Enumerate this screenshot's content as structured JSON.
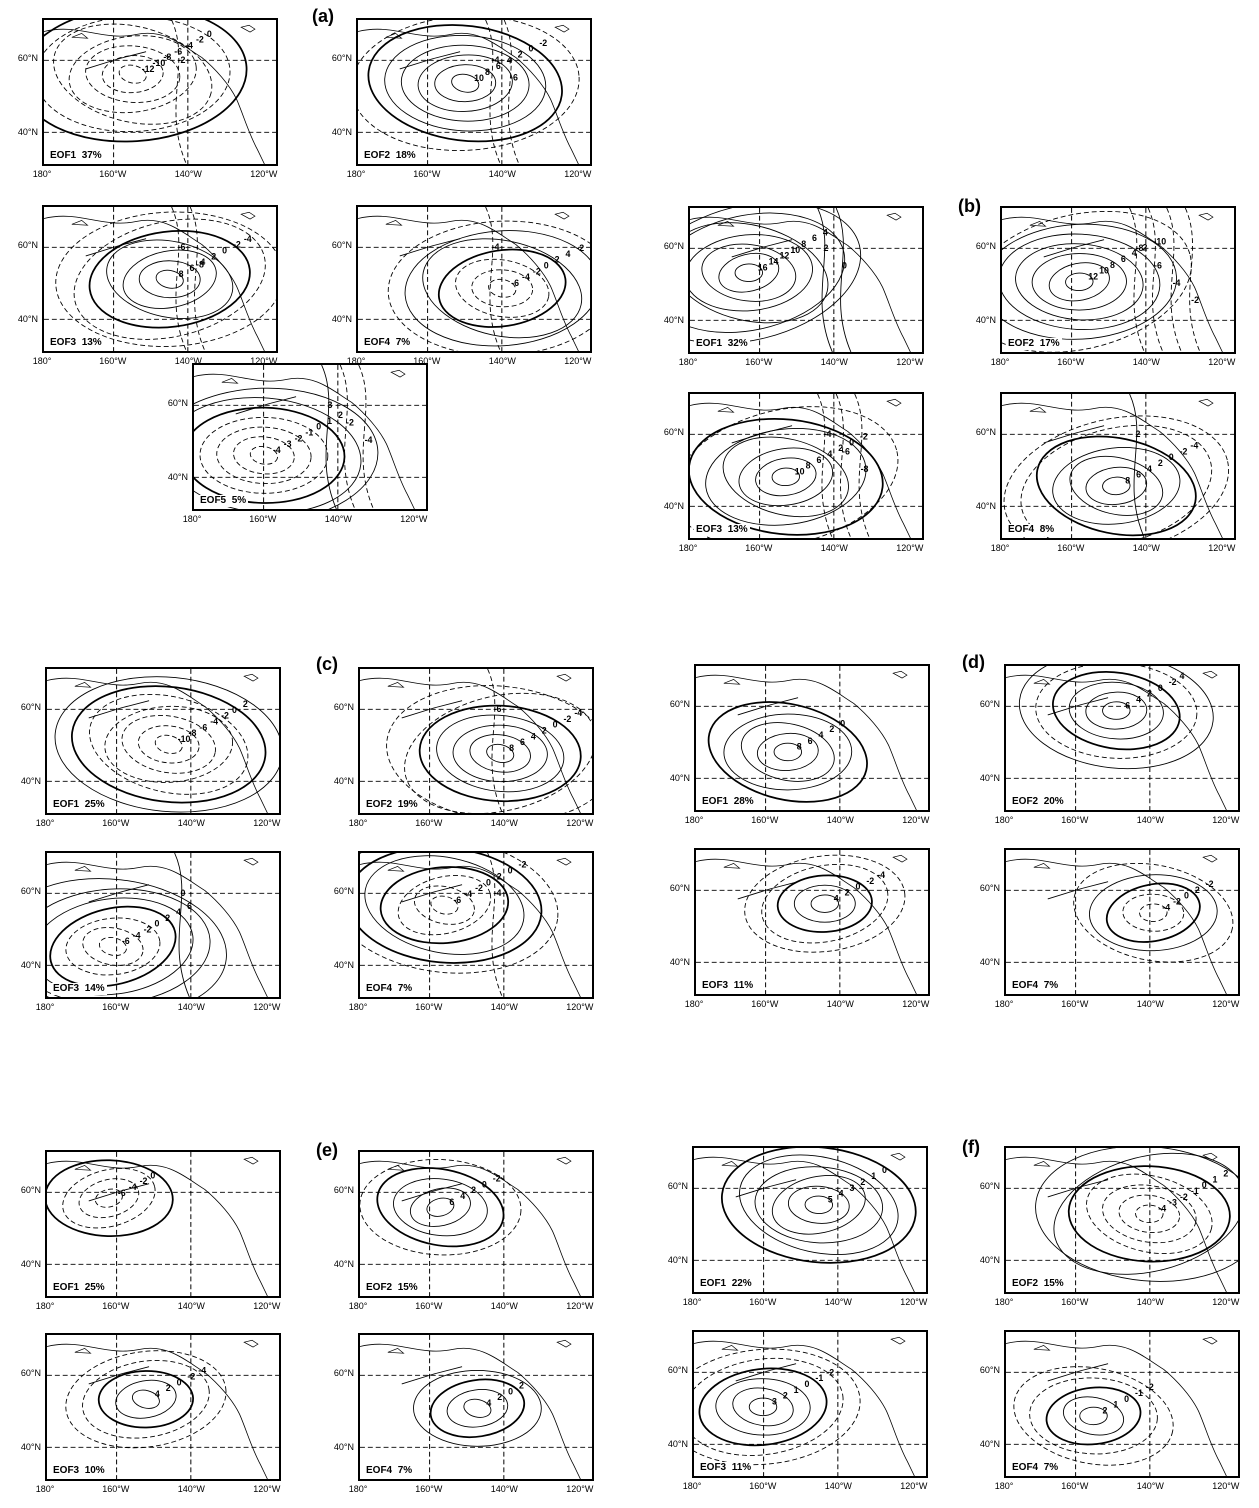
{
  "axes": {
    "lat_labels": [
      "60°N",
      "40°N"
    ],
    "lon_labels": [
      "180°",
      "160°W",
      "140°W",
      "120°W"
    ]
  },
  "groups": [
    {
      "label": "(a)",
      "panels": [
        {
          "eof": "EOF1",
          "pct": "37%",
          "levels": [
            "-12",
            "-10",
            "-8",
            "-6",
            "-4",
            "-2",
            "0",
            "-2"
          ]
        },
        {
          "eof": "EOF2",
          "pct": "18%",
          "levels": [
            "10",
            "8",
            "6",
            "4",
            "2",
            "0",
            "-2",
            "-4",
            "-6"
          ]
        },
        {
          "eof": "EOF3",
          "pct": "13%",
          "levels": [
            "8",
            "6",
            "4",
            "2",
            "0",
            "-2",
            "-4",
            "-6",
            "-8"
          ]
        },
        {
          "eof": "EOF4",
          "pct": "7%",
          "levels": [
            "-6",
            "-4",
            "-2",
            "0",
            "2",
            "4",
            "-2",
            "-4"
          ]
        },
        {
          "eof": "EOF5",
          "pct": "5%",
          "levels": [
            "-4",
            "-3",
            "-2",
            "-1",
            "0",
            "1",
            "2",
            "3",
            "-2",
            "-4"
          ]
        }
      ]
    },
    {
      "label": "(b)",
      "panels": [
        {
          "eof": "EOF1",
          "pct": "32%",
          "levels": [
            "16",
            "14",
            "12",
            "10",
            "8",
            "6",
            "4",
            "2",
            "0"
          ]
        },
        {
          "eof": "EOF2",
          "pct": "17%",
          "levels": [
            "12",
            "10",
            "8",
            "6",
            "4",
            "2",
            "-10",
            "-8",
            "-6",
            "-4",
            "-2"
          ]
        },
        {
          "eof": "EOF3",
          "pct": "13%",
          "levels": [
            "10",
            "8",
            "6",
            "4",
            "2",
            "0",
            "-2",
            "-4",
            "-6",
            "-8"
          ]
        },
        {
          "eof": "EOF4",
          "pct": "8%",
          "levels": [
            "8",
            "6",
            "4",
            "2",
            "0",
            "-2",
            "-4",
            "2"
          ]
        }
      ]
    },
    {
      "label": "(c)",
      "panels": [
        {
          "eof": "EOF1",
          "pct": "25%",
          "levels": [
            "-10",
            "-8",
            "-6",
            "-4",
            "-2",
            "0",
            "2"
          ]
        },
        {
          "eof": "EOF2",
          "pct": "19%",
          "levels": [
            "8",
            "6",
            "4",
            "2",
            "0",
            "-2",
            "-4",
            "-6"
          ]
        },
        {
          "eof": "EOF3",
          "pct": "14%",
          "levels": [
            "-6",
            "-4",
            "-2",
            "0",
            "2",
            "4",
            "6",
            "0"
          ]
        },
        {
          "eof": "EOF4",
          "pct": "7%",
          "levels": [
            "-6",
            "-4",
            "-2",
            "0",
            "2",
            "0",
            "-2",
            "-4"
          ]
        }
      ]
    },
    {
      "label": "(d)",
      "panels": [
        {
          "eof": "EOF1",
          "pct": "28%",
          "levels": [
            "8",
            "6",
            "4",
            "2",
            "0"
          ]
        },
        {
          "eof": "EOF2",
          "pct": "20%",
          "levels": [
            "6",
            "4",
            "2",
            "0",
            "-2",
            "4"
          ]
        },
        {
          "eof": "EOF3",
          "pct": "11%",
          "levels": [
            "4",
            "2",
            "0",
            "-2",
            "-4"
          ]
        },
        {
          "eof": "EOF4",
          "pct": "7%",
          "levels": [
            "-4",
            "-2",
            "0",
            "2",
            "-2"
          ]
        }
      ]
    },
    {
      "label": "(e)",
      "panels": [
        {
          "eof": "EOF1",
          "pct": "25%",
          "levels": [
            "-6",
            "-4",
            "-2",
            "0"
          ]
        },
        {
          "eof": "EOF2",
          "pct": "15%",
          "levels": [
            "6",
            "4",
            "2",
            "0",
            "-2"
          ]
        },
        {
          "eof": "EOF3",
          "pct": "10%",
          "levels": [
            "4",
            "2",
            "0",
            "-2",
            "-4"
          ]
        },
        {
          "eof": "EOF4",
          "pct": "7%",
          "levels": [
            "4",
            "2",
            "0",
            "2"
          ]
        }
      ]
    },
    {
      "label": "(f)",
      "panels": [
        {
          "eof": "EOF1",
          "pct": "22%",
          "levels": [
            "5",
            "4",
            "3",
            "2",
            "1",
            "0"
          ]
        },
        {
          "eof": "EOF2",
          "pct": "15%",
          "levels": [
            "-4",
            "-3",
            "-2",
            "-1",
            "0",
            "1",
            "2"
          ]
        },
        {
          "eof": "EOF3",
          "pct": "11%",
          "levels": [
            "3",
            "2",
            "1",
            "0",
            "-1",
            "-2"
          ]
        },
        {
          "eof": "EOF4",
          "pct": "7%",
          "levels": [
            "2",
            "1",
            "0",
            "-1",
            "-2"
          ]
        }
      ]
    }
  ]
}
